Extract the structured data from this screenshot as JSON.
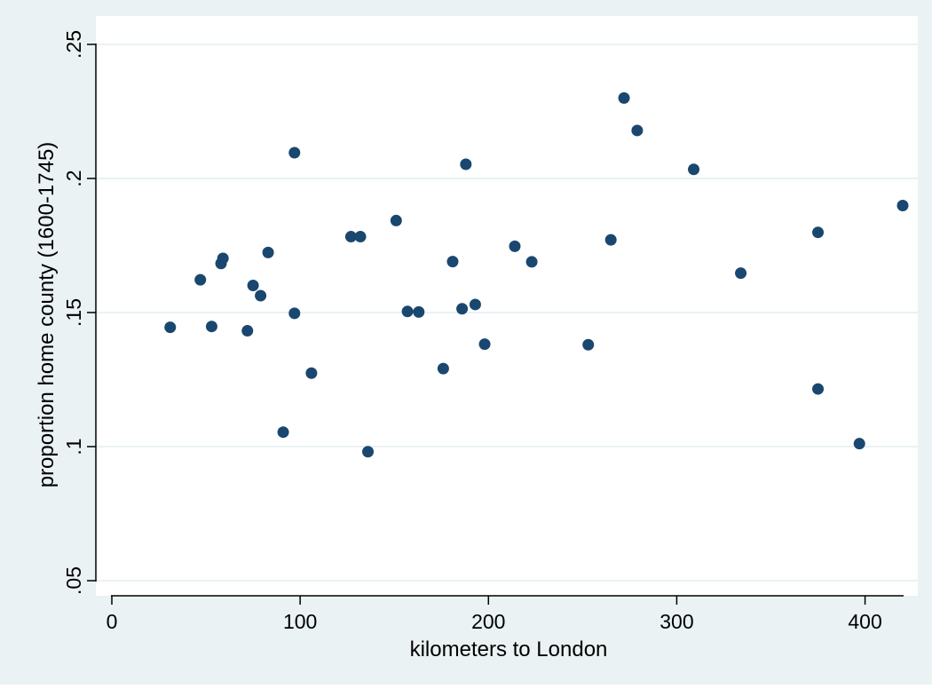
{
  "colors": {
    "outer_background": "#eaf2f3",
    "plot_background": "#ffffff",
    "gridline": "#eaf2f3",
    "marker": "#1a476f",
    "axis": "#000000"
  },
  "chart_data": {
    "type": "scatter",
    "title": "",
    "xlabel": "kilometers to London",
    "ylabel": "proportion home county (1600-1745)",
    "xlim": [
      0,
      420
    ],
    "ylim": [
      0.05,
      0.25
    ],
    "x_ticks": [
      0,
      100,
      200,
      300,
      400
    ],
    "x_tick_labels": [
      "0",
      "100",
      "200",
      "300",
      "400"
    ],
    "y_ticks": [
      0.05,
      0.1,
      0.15,
      0.2,
      0.25
    ],
    "y_tick_labels": [
      ".05",
      ".1",
      ".15",
      ".2",
      ".25"
    ],
    "grid": "horizontal",
    "legend": "none",
    "points": [
      {
        "x": 31,
        "y": 0.1445
      },
      {
        "x": 47,
        "y": 0.1622
      },
      {
        "x": 53,
        "y": 0.1448
      },
      {
        "x": 58,
        "y": 0.1683
      },
      {
        "x": 59,
        "y": 0.1702
      },
      {
        "x": 72,
        "y": 0.1432
      },
      {
        "x": 75,
        "y": 0.1601
      },
      {
        "x": 79,
        "y": 0.1563
      },
      {
        "x": 83,
        "y": 0.1724
      },
      {
        "x": 91,
        "y": 0.1054
      },
      {
        "x": 97,
        "y": 0.1497
      },
      {
        "x": 97,
        "y": 0.2096
      },
      {
        "x": 106,
        "y": 0.1274
      },
      {
        "x": 127,
        "y": 0.1783
      },
      {
        "x": 132,
        "y": 0.1783
      },
      {
        "x": 136,
        "y": 0.0981
      },
      {
        "x": 151,
        "y": 0.1843
      },
      {
        "x": 157,
        "y": 0.1504
      },
      {
        "x": 163,
        "y": 0.1502
      },
      {
        "x": 176,
        "y": 0.1291
      },
      {
        "x": 181,
        "y": 0.169
      },
      {
        "x": 186,
        "y": 0.1514
      },
      {
        "x": 188,
        "y": 0.2053
      },
      {
        "x": 193,
        "y": 0.153
      },
      {
        "x": 198,
        "y": 0.1382
      },
      {
        "x": 214,
        "y": 0.1747
      },
      {
        "x": 223,
        "y": 0.1689
      },
      {
        "x": 253,
        "y": 0.138
      },
      {
        "x": 265,
        "y": 0.1771
      },
      {
        "x": 272,
        "y": 0.23
      },
      {
        "x": 279,
        "y": 0.2179
      },
      {
        "x": 309,
        "y": 0.2034
      },
      {
        "x": 334,
        "y": 0.1647
      },
      {
        "x": 375,
        "y": 0.1799
      },
      {
        "x": 375,
        "y": 0.1215
      },
      {
        "x": 397,
        "y": 0.1011
      },
      {
        "x": 420,
        "y": 0.1899
      }
    ]
  }
}
